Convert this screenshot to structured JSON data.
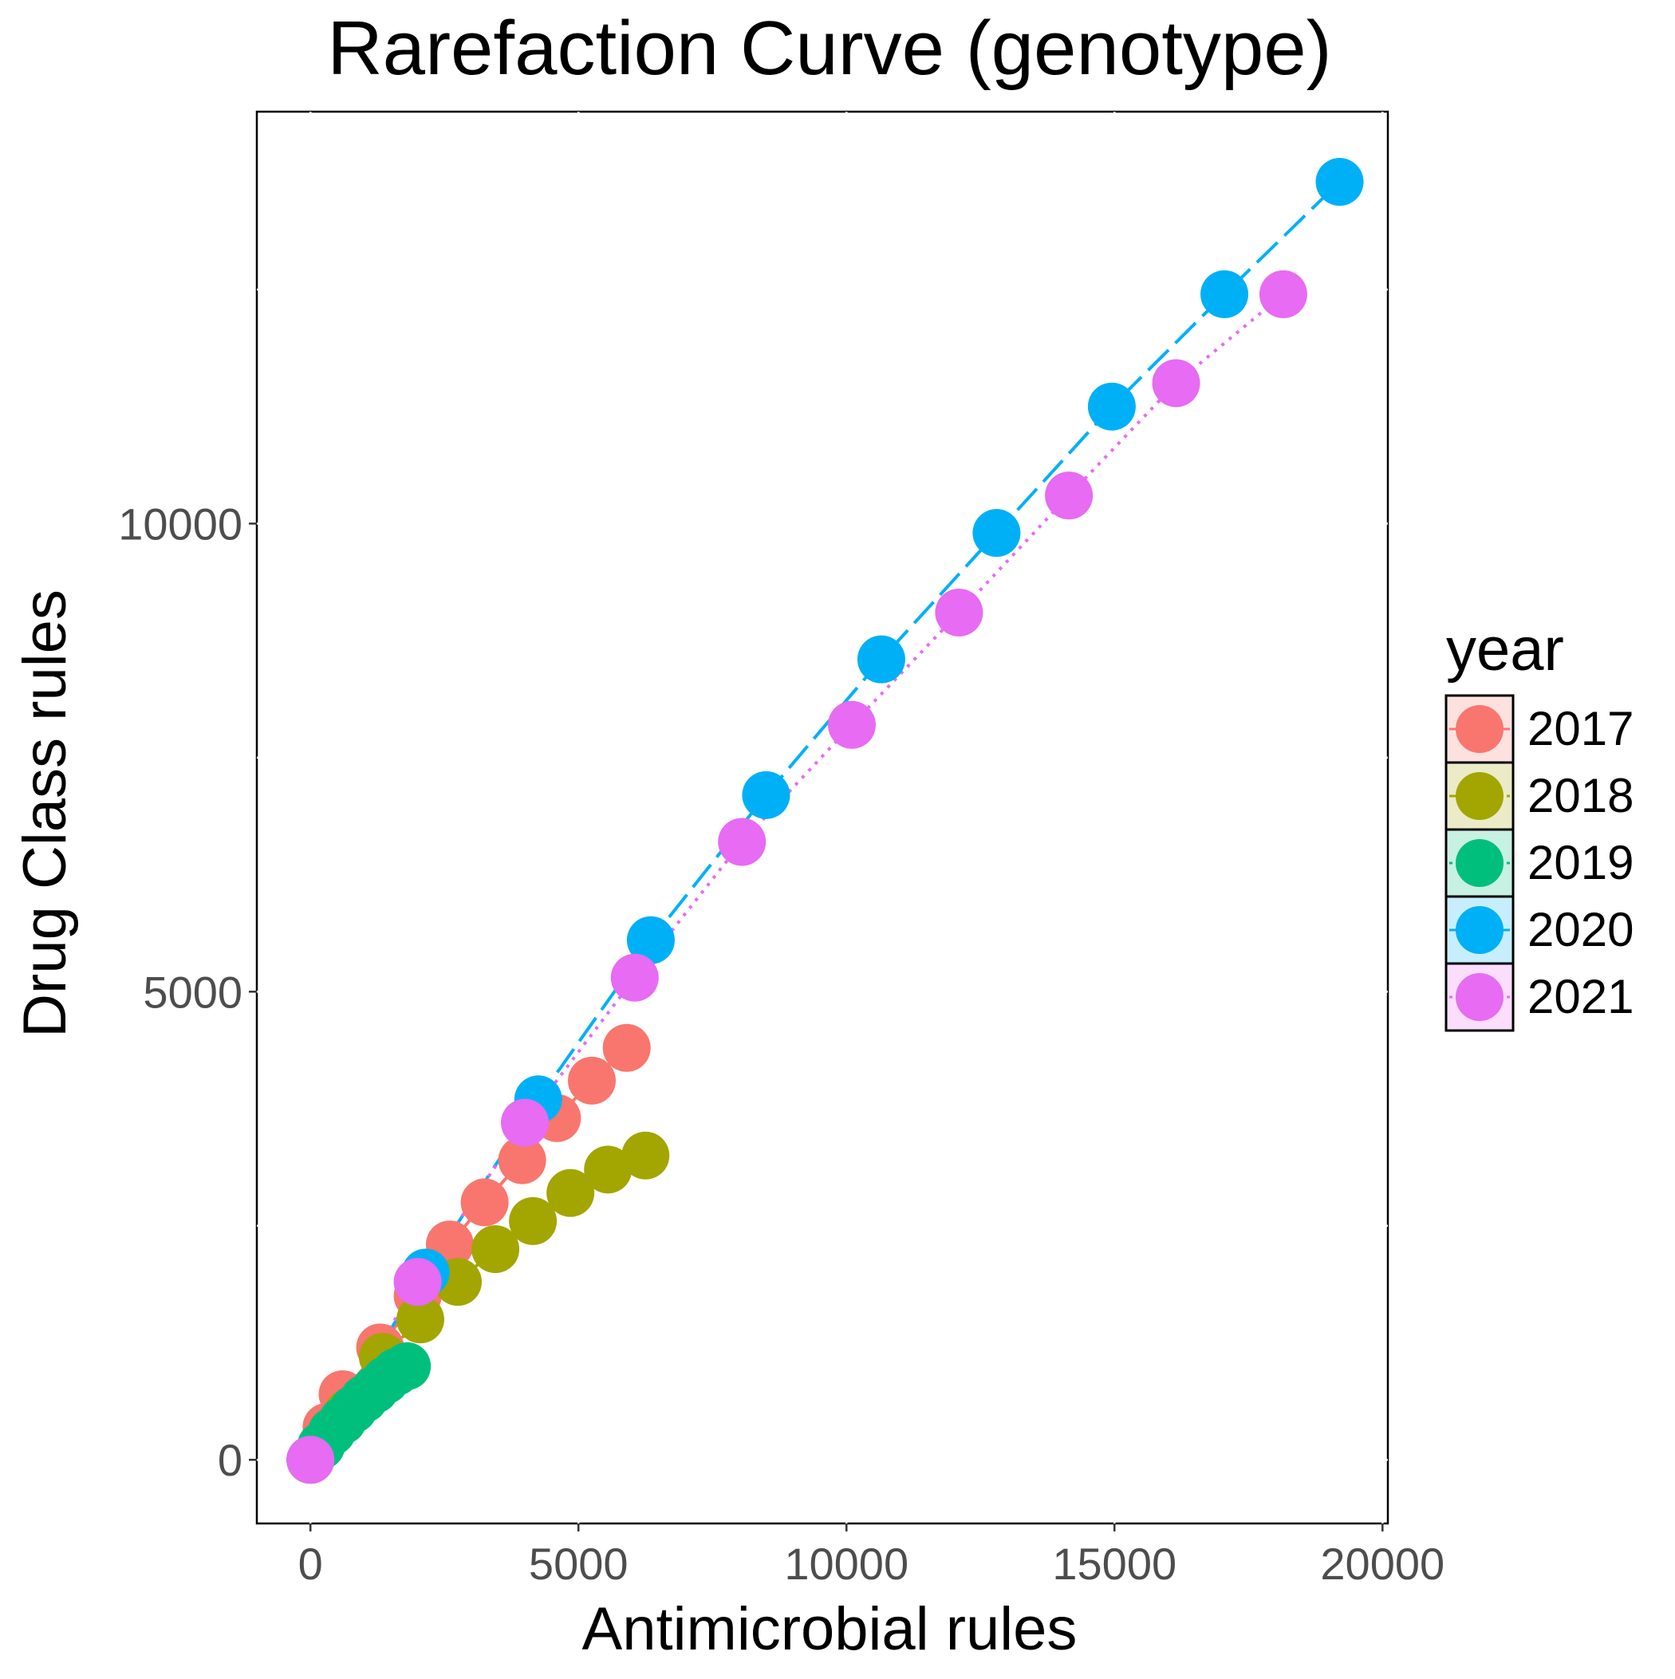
{
  "chart_data": {
    "type": "line",
    "title": "Rarefaction Curve (genotype)",
    "xlabel": "Antimicrobial rules",
    "ylabel": "Drug Class rules",
    "xlim": [
      -1000,
      20100
    ],
    "ylim": [
      -680,
      14400
    ],
    "x_ticks": [
      0,
      5000,
      10000,
      15000,
      20000
    ],
    "x_tick_labels": [
      "0",
      "5000",
      "10000",
      "15000",
      "20000"
    ],
    "y_ticks": [
      0,
      5000,
      10000
    ],
    "y_tick_labels": [
      "0",
      "5000",
      "10000"
    ],
    "y_minor_ticks": [
      2500,
      7500,
      12500
    ],
    "grid": false,
    "legend": {
      "title": "year",
      "position": "right"
    },
    "series": [
      {
        "name": "2017",
        "color": "#F8766D",
        "linetype": "solid",
        "x": [
          0,
          300,
          600,
          1300,
          2000,
          2600,
          3250,
          3950,
          4600,
          5250,
          5900
        ],
        "y": [
          0,
          350,
          700,
          1200,
          1750,
          2300,
          2750,
          3200,
          3650,
          4050,
          4400
        ]
      },
      {
        "name": "2018",
        "color": "#A3A500",
        "linetype": "dashed",
        "x": [
          0,
          700,
          1350,
          2050,
          2750,
          3450,
          4150,
          4850,
          5550,
          6250
        ],
        "y": [
          0,
          500,
          1100,
          1500,
          1900,
          2250,
          2550,
          2850,
          3100,
          3250
        ]
      },
      {
        "name": "2019",
        "color": "#00BF7D",
        "linetype": "dotted",
        "x": [
          0,
          200,
          400,
          600,
          800,
          1000,
          1200,
          1400,
          1600,
          1800
        ],
        "y": [
          0,
          150,
          300,
          420,
          540,
          650,
          750,
          850,
          940,
          1000
        ]
      },
      {
        "name": "2020",
        "color": "#00B0F6",
        "linetype": "longdash",
        "x": [
          0,
          2150,
          4250,
          6350,
          8500,
          10650,
          12800,
          14950,
          17050,
          19200
        ],
        "y": [
          0,
          2000,
          3850,
          5550,
          7100,
          8550,
          9900,
          11250,
          12450,
          13650
        ]
      },
      {
        "name": "2021",
        "color": "#E76BF3",
        "linetype": "dotted",
        "x": [
          0,
          2000,
          4000,
          6050,
          8050,
          10100,
          12100,
          14150,
          16150,
          18150
        ],
        "y": [
          0,
          1900,
          3600,
          5150,
          6600,
          7850,
          9050,
          10300,
          11500,
          12450
        ]
      }
    ]
  }
}
